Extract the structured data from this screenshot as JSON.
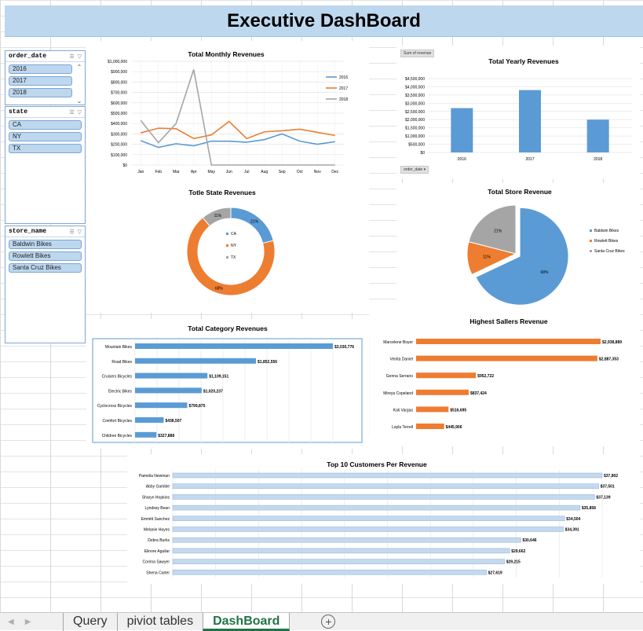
{
  "dashboard_title": "Executive DashBoard",
  "slicers": {
    "order_date": {
      "title": "order_date",
      "items": [
        "2016",
        "2017",
        "2018"
      ]
    },
    "state": {
      "title": "state",
      "items": [
        "CA",
        "NY",
        "TX"
      ]
    },
    "store_name": {
      "title": "store_name",
      "items": [
        "Baldwin Bikes",
        "Rowlett Bikes",
        "Santa Cruz Bikes"
      ]
    }
  },
  "pivot_buttons": {
    "sum_of_revenue": "Sum of revenue",
    "order_date": "order_date"
  },
  "sheet_tabs": [
    "Query",
    "piviot tables",
    "DashBoard"
  ],
  "active_tab": "DashBoard",
  "colors": {
    "blue": "#5b9bd5",
    "orange": "#ed7d31",
    "gray": "#a5a5a5",
    "title_bg": "#bdd7ee"
  },
  "chart_data": [
    {
      "id": "monthly",
      "type": "line",
      "title": "Total Monthly Revenues",
      "categories": [
        "Jan",
        "Feb",
        "Mar",
        "Apr",
        "May",
        "Jun",
        "Jul",
        "Aug",
        "Sep",
        "Oct",
        "Nov",
        "Dec"
      ],
      "y_ticks": [
        "$0",
        "$100,000",
        "$200,000",
        "$300,000",
        "$400,000",
        "$500,000",
        "$600,000",
        "$700,000",
        "$800,000",
        "$900,000",
        "$1,000,000"
      ],
      "ylim": [
        0,
        1000000
      ],
      "legend_position": "right",
      "series": [
        {
          "name": "2016",
          "color": "#5b9bd5",
          "values": [
            235000,
            170000,
            205000,
            185000,
            230000,
            230000,
            220000,
            245000,
            300000,
            230000,
            200000,
            225000
          ]
        },
        {
          "name": "2017",
          "color": "#ed7d31",
          "values": [
            310000,
            355000,
            350000,
            255000,
            290000,
            420000,
            255000,
            320000,
            330000,
            345000,
            315000,
            285000
          ]
        },
        {
          "name": "2018",
          "color": "#a5a5a5",
          "values": [
            430000,
            215000,
            400000,
            920000,
            0,
            0,
            0,
            0,
            0,
            0,
            0,
            0
          ]
        }
      ]
    },
    {
      "id": "yearly",
      "type": "bar",
      "title": "Total Yearly Revenues",
      "categories": [
        "2016",
        "2017",
        "2018"
      ],
      "values": [
        2700000,
        3800000,
        2000000
      ],
      "y_ticks": [
        "$0",
        "$500,000",
        "$1,000,000",
        "$1,500,000",
        "$2,000,000",
        "$2,500,000",
        "$3,000,000",
        "$3,500,000",
        "$4,000,000",
        "$4,500,000"
      ],
      "ylim": [
        0,
        4500000
      ]
    },
    {
      "id": "state",
      "type": "pie",
      "title": "Totle State Revenues",
      "labels": [
        "CA",
        "NY",
        "TX"
      ],
      "values": [
        21,
        68,
        11
      ],
      "value_labels": [
        "21%",
        "68%",
        "11%"
      ],
      "colors": [
        "#5b9bd5",
        "#ed7d31",
        "#a5a5a5"
      ]
    },
    {
      "id": "store",
      "type": "pie",
      "title": "Total Store Revenue",
      "labels": [
        "Baldwin Bikes",
        "Rowlett Bikes",
        "Santa Cruz Bikes"
      ],
      "values": [
        68,
        11,
        21
      ],
      "value_labels": [
        "68%",
        "11%",
        "21%"
      ],
      "colors": [
        "#5b9bd5",
        "#ed7d31",
        "#a5a5a5"
      ]
    },
    {
      "id": "category",
      "type": "bar",
      "title": "Total Category Revenues",
      "categories": [
        "Mountain Bikes",
        "Road Bikes",
        "Cruisers Bicycles",
        "Electric Bikes",
        "Cyclocross Bicycles",
        "Comfort Bicycles",
        "Children Bicycles"
      ],
      "values": [
        3030776,
        1852556,
        1109151,
        1020237,
        799875,
        438507,
        327888
      ],
      "value_labels": [
        "$3,030,776",
        "$1,852,556",
        "$1,109,151",
        "$1,020,237",
        "$799,875",
        "$438,507",
        "$327,888"
      ]
    },
    {
      "id": "sellers",
      "type": "bar",
      "title": "Highest Sallers Revenue",
      "categories": [
        "Marcelene Boyer",
        "Venita Daniel",
        "Genna Serrano",
        "Mireya Copeland",
        "Kali Vargas",
        "Layla Terrell"
      ],
      "values": [
        2938889,
        2887353,
        952722,
        837424,
        516695,
        445906
      ],
      "value_labels": [
        "$2,938,889",
        "$2,887,353",
        "$952,722",
        "$837,424",
        "$516,695",
        "$445,906"
      ]
    },
    {
      "id": "customers",
      "type": "bar",
      "title": "Top 10 Customers  Per Revenue",
      "categories": [
        "Pamelia Newman",
        "Abby Gamble",
        "Sharyn Hopkins",
        "Lyndsey Bean",
        "Emmitt Sanchez",
        "Melanie Hayes",
        "Debra Burks",
        "Elinore Aguilar",
        "Corrina Sawyer",
        "Shena Carter"
      ],
      "values": [
        37802,
        37501,
        37139,
        35858,
        34504,
        34391,
        30646,
        29662,
        29215,
        27619
      ],
      "value_labels": [
        "$37,802",
        "$37,501",
        "$37,139",
        "$35,858",
        "$34,504",
        "$34,391",
        "$30,646",
        "$29,662",
        "$29,215",
        "$27,619"
      ]
    }
  ]
}
